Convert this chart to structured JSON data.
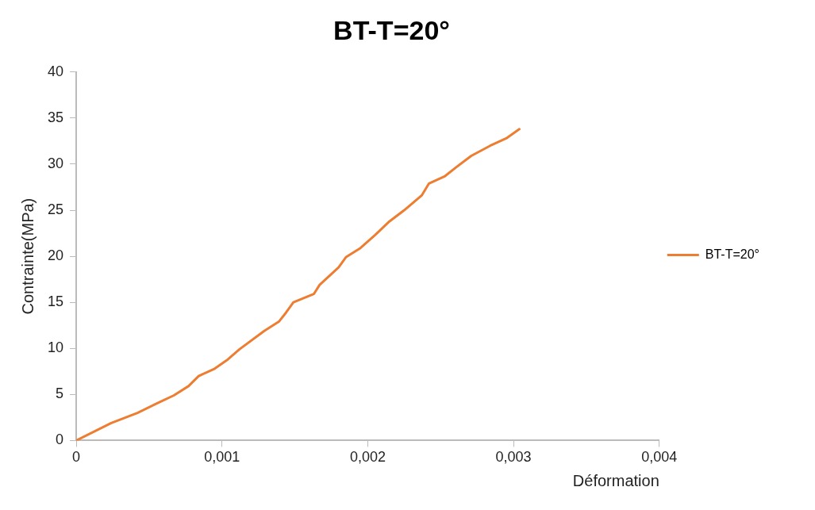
{
  "chart_data": {
    "type": "line",
    "title": "BT-T=20°",
    "xlabel": "Déformation",
    "ylabel": "Contrainte(MPa)",
    "x": [
      0,
      0.00024,
      0.00042,
      0.00055,
      0.00067,
      0.00077,
      0.00084,
      0.00095,
      0.00104,
      0.00112,
      0.00129,
      0.00139,
      0.00144,
      0.00149,
      0.00163,
      0.00167,
      0.0018,
      0.00185,
      0.00195,
      0.00205,
      0.00215,
      0.00225,
      0.00237,
      0.00242,
      0.00253,
      0.00261,
      0.00271,
      0.00284,
      0.00295,
      0.00304
    ],
    "series": [
      {
        "name": "BT-T=20°",
        "color": "#ed7d31",
        "values": [
          0,
          1.9,
          3,
          4,
          4.9,
          5.9,
          7,
          7.8,
          8.8,
          9.9,
          11.9,
          12.9,
          13.9,
          15,
          15.9,
          16.9,
          18.8,
          19.9,
          20.9,
          22.3,
          23.8,
          25,
          26.6,
          27.9,
          28.7,
          29.7,
          30.9,
          32,
          32.8,
          33.8
        ]
      }
    ],
    "xlim": [
      0,
      0.004
    ],
    "xticks": [
      {
        "value": 0,
        "label": "0"
      },
      {
        "value": 0.001,
        "label": "0,001"
      },
      {
        "value": 0.002,
        "label": "0,002"
      },
      {
        "value": 0.003,
        "label": "0,003"
      },
      {
        "value": 0.004,
        "label": "0,004"
      }
    ],
    "ylim": [
      0,
      40
    ],
    "yticks": [
      0,
      5,
      10,
      15,
      20,
      25,
      30,
      35,
      40
    ],
    "grid": false,
    "legend": "right",
    "marker": "none",
    "line_style": "solid"
  }
}
